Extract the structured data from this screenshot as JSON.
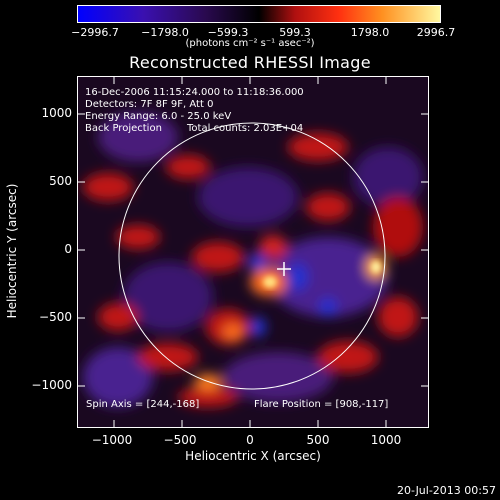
{
  "colorbar": {
    "ticks": [
      "−2996.7",
      "−1798.0",
      "−599.3",
      "599.3",
      "1798.0",
      "2996.7"
    ],
    "unit": "(photons cm⁻² s⁻¹ asec⁻²)"
  },
  "title": "Reconstructed RHESSI Image",
  "info": {
    "time_range": "16-Dec-2006 11:15:24.000 to 11:18:36.000",
    "detectors": "Detectors: 7F 8F 9F, Att 0",
    "energy": "Energy Range: 6.0 - 25.0 keV",
    "method": "Back Projection",
    "counts": "Total counts: 2.03E+04",
    "spin_axis": "Spin Axis = [244,-168]",
    "flare_position": "Flare Position = [908,-117]"
  },
  "axes": {
    "xlabel": "Heliocentric X (arcsec)",
    "ylabel": "Heliocentric Y (arcsec)",
    "xticks": [
      "−1000",
      "−500",
      "0",
      "500",
      "1000"
    ],
    "yticks": [
      "1000",
      "500",
      "0",
      "−500",
      "−1000"
    ]
  },
  "footer": "20-Jul-2013 00:57",
  "colors": {
    "negative": "#2020ff",
    "positive": "#ffff80",
    "background": "#000000"
  }
}
